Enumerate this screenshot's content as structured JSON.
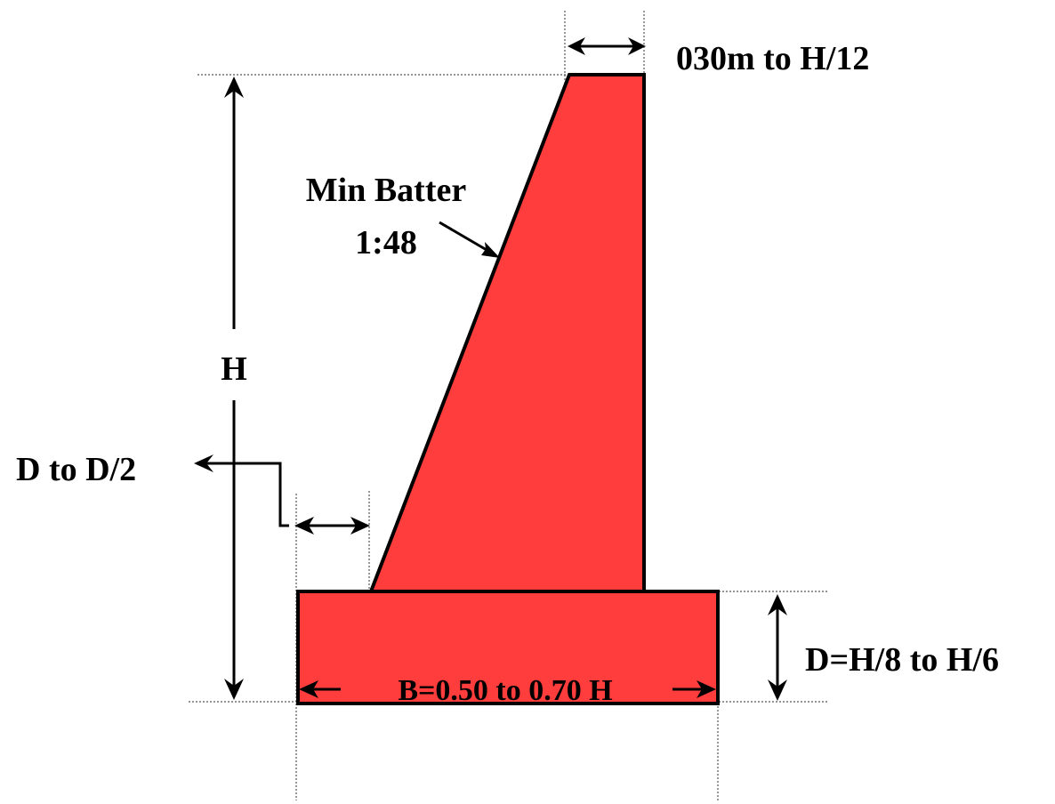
{
  "colors": {
    "wall_fill": "#ff3d3d",
    "outline": "#000000",
    "background": "#ffffff"
  },
  "labels": {
    "top_width": "030m to H/12",
    "batter_line1": "Min Batter",
    "batter_line2": "1:48",
    "height": "H",
    "toe_projection": "D to D/2",
    "base_thickness": "D=H/8 to H/6",
    "base_width": "B=0.50 to 0.70 H"
  }
}
